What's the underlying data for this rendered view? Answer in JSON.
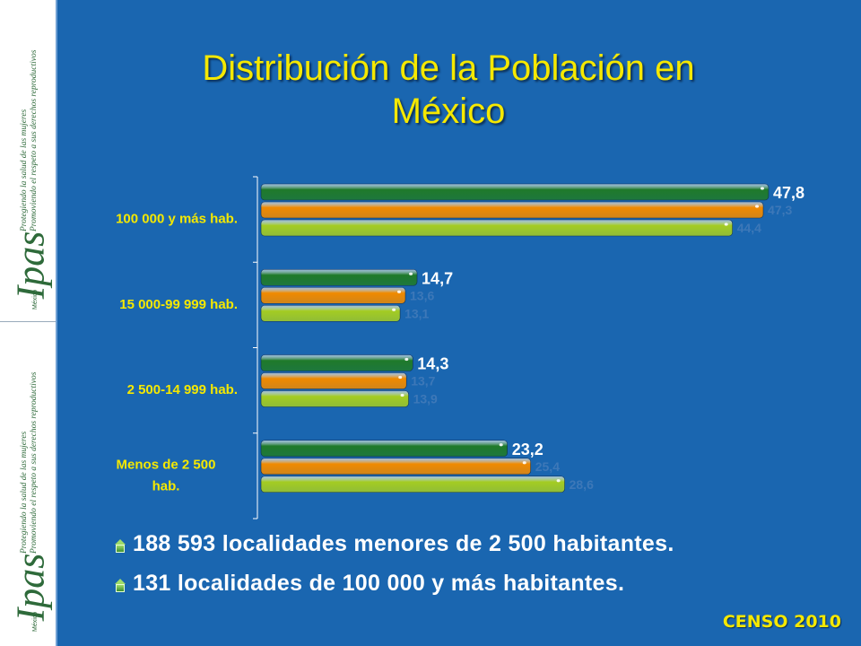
{
  "sidebar": {
    "brand": "Ipas",
    "brand_sub": "México",
    "tagline_1": "Protegiendo la salud de las mujeres",
    "tagline_2": "Promoviendo el respeto a sus derechos reproductivos"
  },
  "title_line1": "Distribución de la Población en",
  "title_line2": "México",
  "chart_data": {
    "type": "bar",
    "orientation": "horizontal",
    "categories": [
      "100 000 y más hab.",
      "15 000-99 999 hab.",
      "2 500-14 999 hab.",
      "Menos de 2 500 hab."
    ],
    "series": [
      {
        "values": [
          47.8,
          14.7,
          14.3,
          23.2
        ],
        "labels": [
          "47,8",
          "14,7",
          "14,3",
          "23,2"
        ],
        "color": "#1f7a2a",
        "label_color": "#ffffff"
      },
      {
        "values": [
          47.3,
          13.6,
          13.7,
          25.4
        ],
        "labels": [
          "47,3",
          "13,6",
          "13,7",
          "25,4"
        ],
        "color": "#f08a00",
        "label_color": "#3d78b8"
      },
      {
        "values": [
          44.4,
          13.1,
          13.9,
          28.6
        ],
        "labels": [
          "44,4",
          "13,1",
          "13,9",
          "28,6"
        ],
        "color": "#a4cc22",
        "label_color": "#3d78b8"
      }
    ],
    "xlim": [
      0,
      50
    ],
    "grid": false,
    "legend": "none"
  },
  "bullets": [
    "188 593 localidades menores de 2 500 habitantes.",
    "131 localidades de 100 000 y más habitantes."
  ],
  "source": "CENSO 2010"
}
